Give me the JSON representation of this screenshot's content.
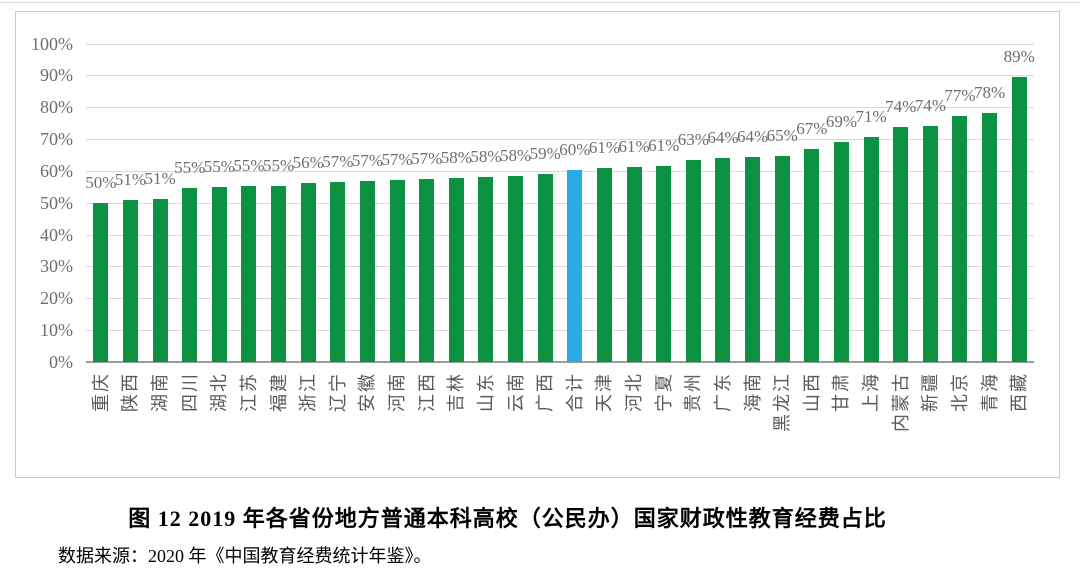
{
  "figure": {
    "caption": "图 12  2019 年各省份地方普通本科高校（公民办）国家财政性教育经费占比",
    "source": "数据来源：2020 年《中国教育经费统计年鉴》。"
  },
  "chart_data": {
    "type": "bar",
    "title": "",
    "xlabel": "",
    "ylabel": "",
    "categories": [
      "重庆",
      "陕西",
      "湖南",
      "四川",
      "湖北",
      "江苏",
      "福建",
      "浙江",
      "辽宁",
      "安徽",
      "河南",
      "江西",
      "吉林",
      "山东",
      "云南",
      "广西",
      "合计",
      "天津",
      "河北",
      "宁夏",
      "贵州",
      "广东",
      "海南",
      "黑龙江",
      "山西",
      "甘肃",
      "上海",
      "内蒙古",
      "新疆",
      "北京",
      "青海",
      "西藏"
    ],
    "values": [
      50,
      51,
      51,
      55,
      55,
      55,
      55,
      56,
      57,
      57,
      57,
      57,
      58,
      58,
      58,
      59,
      60,
      61,
      61,
      61,
      63,
      64,
      64,
      65,
      67,
      69,
      71,
      74,
      74,
      77,
      78,
      89
    ],
    "bar_labels": [
      "50%",
      "51%",
      "51%",
      "55%",
      "55%",
      "55%",
      "55%",
      "56%",
      "57%",
      "57%",
      "57%",
      "57%",
      "58%",
      "58%",
      "58%",
      "59%",
      "60%",
      "61%",
      "61%",
      "61%",
      "63%",
      "64%",
      "64%",
      "65%",
      "67%",
      "69%",
      "71%",
      "74%",
      "74%",
      "77%",
      "78%",
      "89%"
    ],
    "values_precise_est": [
      50.0,
      50.8,
      51.1,
      54.6,
      54.9,
      55.2,
      55.4,
      56.1,
      56.6,
      56.9,
      57.2,
      57.4,
      57.7,
      58.1,
      58.4,
      58.9,
      60.2,
      60.8,
      61.1,
      61.4,
      63.4,
      64.1,
      64.4,
      64.8,
      66.9,
      69.1,
      70.7,
      73.8,
      74.1,
      77.2,
      78.3,
      89.4
    ],
    "highlight_category": "合计",
    "highlight_index": 16,
    "ylim": [
      0,
      100
    ],
    "ytick_labels": [
      "0%",
      "10%",
      "20%",
      "30%",
      "40%",
      "50%",
      "60%",
      "70%",
      "80%",
      "90%",
      "100%"
    ],
    "grid": true,
    "legend_position": "none",
    "colors": {
      "bar": "#0d9143",
      "highlight_bar": "#29ace3",
      "gridline": "#d9d9d9",
      "axis_line": "#9c9c9c",
      "tick_text": "#6e6e6e",
      "category_text": "#5a5a5a",
      "frame_border": "#cbcbcb"
    }
  }
}
